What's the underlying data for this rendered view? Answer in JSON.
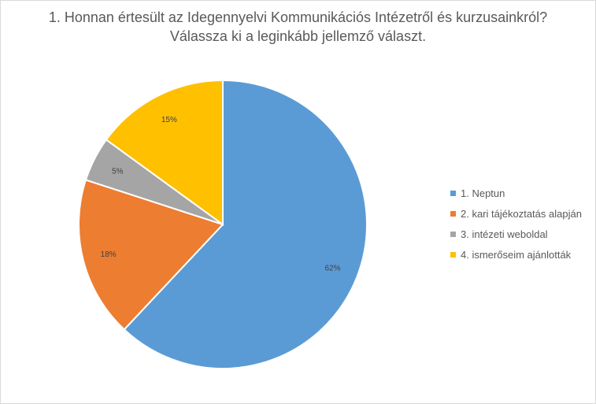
{
  "chart_data": {
    "type": "pie",
    "title_lines": [
      "1. Honnan értesült az  Idegennyelvi Kommunikációs Intézetről és kurzusainkról?",
      "Válassza ki a leginkább jellemző választ."
    ],
    "legend_position": "right",
    "slices": [
      {
        "label": "1. Neptun",
        "value": 62,
        "value_label": "62%",
        "color": "#5B9BD5"
      },
      {
        "label": "2. kari tájékoztatás alapján",
        "value": 18,
        "value_label": "18%",
        "color": "#ED7D31"
      },
      {
        "label": "3. intézeti weboldal",
        "value": 5,
        "value_label": "5%",
        "color": "#A5A5A5"
      },
      {
        "label": "4. ismerőseim ajánlották",
        "value": 15,
        "value_label": "15%",
        "color": "#FFC000"
      }
    ]
  }
}
